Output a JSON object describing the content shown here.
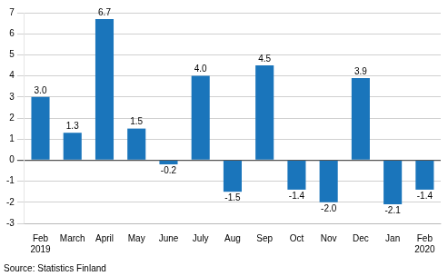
{
  "chart_data": {
    "type": "bar",
    "categories": [
      "Feb\n2019",
      "March",
      "April",
      "May",
      "June",
      "July",
      "Aug",
      "Sep",
      "Oct",
      "Nov",
      "Dec",
      "Jan",
      "Feb\n2020"
    ],
    "values": [
      3.0,
      1.3,
      6.7,
      1.5,
      -0.2,
      4.0,
      -1.5,
      4.5,
      -1.4,
      -2.0,
      3.9,
      -2.1,
      -1.4
    ],
    "value_labels": [
      "3.0",
      "1.3",
      "6.7",
      "1.5",
      "-0.2",
      "4.0",
      "-1.5",
      "4.5",
      "-1.4",
      "-2.0",
      "3.9",
      "-2.1",
      "-1.4"
    ],
    "color": "#1a75bb",
    "ylim": [
      -3,
      7
    ],
    "yticks": [
      -3,
      -2,
      -1,
      0,
      1,
      2,
      3,
      4,
      5,
      6,
      7
    ],
    "grid": true,
    "data_labels": true,
    "annotations": [
      "Source: Statistics Finland"
    ]
  }
}
